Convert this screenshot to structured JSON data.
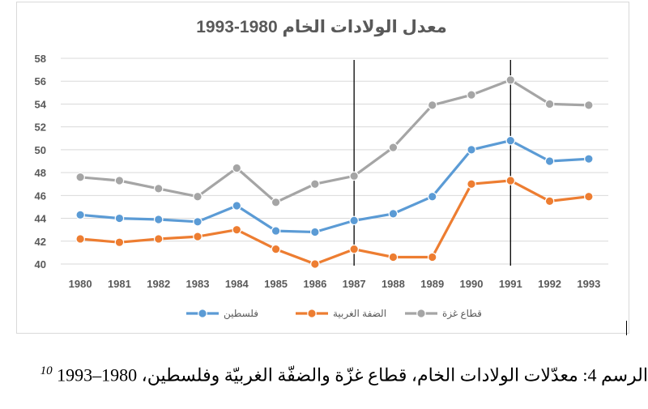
{
  "chart_data": {
    "type": "line",
    "title": "معدل الولادات الخام 1980-1993",
    "xlabel": "",
    "ylabel": "",
    "x": [
      "1980",
      "1981",
      "1982",
      "1983",
      "1984",
      "1985",
      "1986",
      "1987",
      "1988",
      "1989",
      "1990",
      "1991",
      "1992",
      "1993"
    ],
    "ylim": [
      40,
      58
    ],
    "yticks": [
      40,
      42,
      44,
      46,
      48,
      50,
      52,
      54,
      56,
      58
    ],
    "grid": true,
    "legend_position": "bottom",
    "vertical_markers": [
      "1987",
      "1991"
    ],
    "series": [
      {
        "name": "فلسطين",
        "color": "#5b9bd5",
        "values": [
          44.3,
          44.0,
          43.9,
          43.7,
          45.1,
          42.9,
          42.8,
          43.8,
          44.4,
          45.9,
          50.0,
          50.8,
          49.0,
          49.2
        ]
      },
      {
        "name": "الضفة الغربية",
        "color": "#ed7d31",
        "values": [
          42.2,
          41.9,
          42.2,
          42.4,
          43.0,
          41.3,
          40.0,
          41.3,
          40.6,
          40.6,
          47.0,
          47.3,
          45.5,
          45.9
        ]
      },
      {
        "name": "قطاع غزة",
        "color": "#a5a5a5",
        "values": [
          47.6,
          47.3,
          46.6,
          45.9,
          48.4,
          45.4,
          47.0,
          47.7,
          50.2,
          53.9,
          54.8,
          56.1,
          54.0,
          53.9
        ]
      }
    ]
  },
  "caption": {
    "footnote": "10",
    "text": "الرسم 4: معدّلات الولادات الخام، قطاع غزّة والضفّة الغربيّة وفلسطين، 1980–1993"
  }
}
